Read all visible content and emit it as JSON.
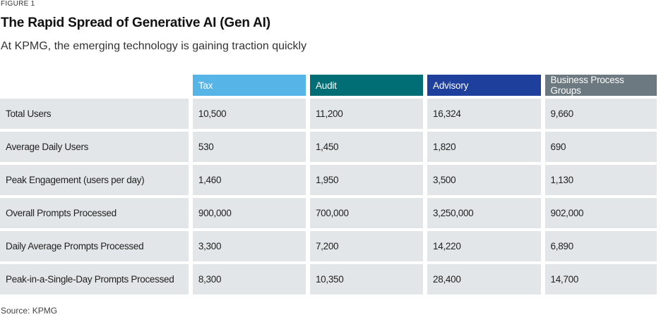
{
  "figure_label": "FIGURE 1",
  "title": "The Rapid Spread of Generative AI (Gen AI)",
  "subtitle": "At KPMG, the emerging technology is gaining traction quickly",
  "colors": {
    "tax": "#57b4e6",
    "audit": "#006e74",
    "advisory": "#1e3f9b",
    "business_process_groups": "#6c7980",
    "cell_background": "#e3e6e8"
  },
  "table": {
    "columns": [
      {
        "label": "Tax",
        "color": "#57b4e6"
      },
      {
        "label": "Audit",
        "color": "#006e74"
      },
      {
        "label": "Advisory",
        "color": "#1e3f9b"
      },
      {
        "label": "Business Process Groups",
        "color": "#6c7980"
      }
    ],
    "rows": [
      {
        "label": "Total Users",
        "values": [
          "10,500",
          "11,200",
          "16,324",
          "9,660"
        ]
      },
      {
        "label": "Average Daily Users",
        "values": [
          "530",
          "1,450",
          "1,820",
          "690"
        ]
      },
      {
        "label": "Peak Engagement (users per day)",
        "values": [
          "1,460",
          "1,950",
          "3,500",
          "1,130"
        ]
      },
      {
        "label": "Overall Prompts Processed",
        "values": [
          "900,000",
          "700,000",
          "3,250,000",
          "902,000"
        ]
      },
      {
        "label": "Daily Average Prompts Processed",
        "values": [
          "3,300",
          "7,200",
          "14,220",
          "6,890"
        ]
      },
      {
        "label": "Peak-in-a-Single-Day Prompts Processed",
        "values": [
          "8,300",
          "10,350",
          "28,400",
          "14,700"
        ]
      }
    ]
  },
  "source": "Source: KPMG"
}
